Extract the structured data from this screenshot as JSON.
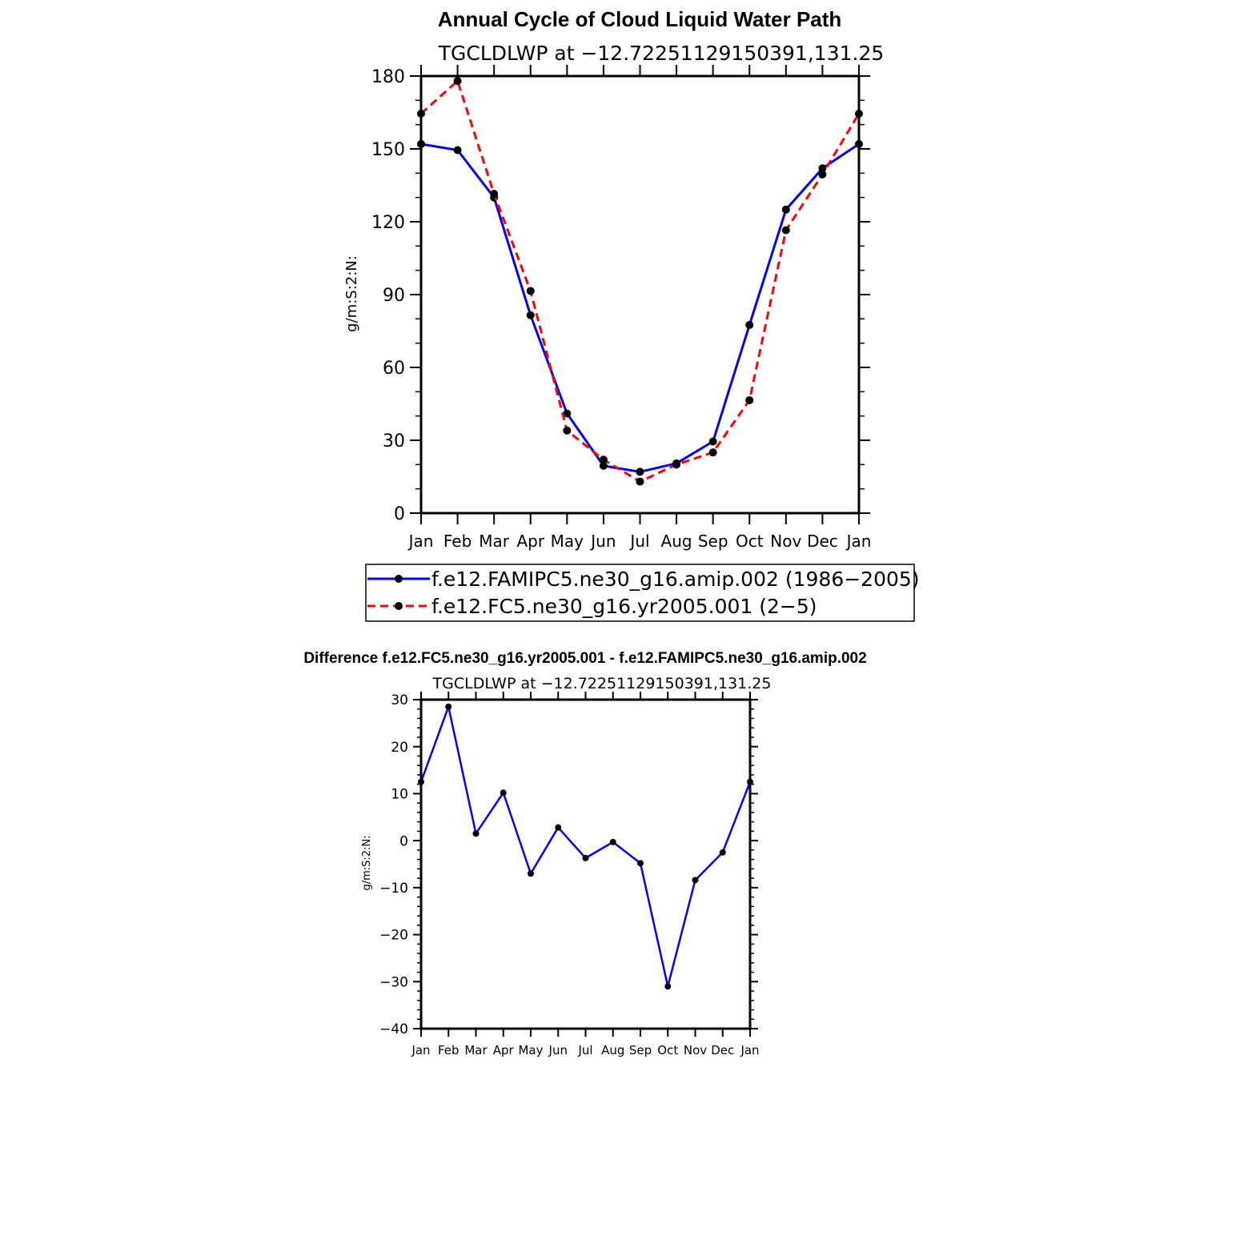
{
  "chart_data": [
    {
      "type": "line",
      "title": "Annual Cycle of Cloud Liquid Water Path",
      "subtitle": "TGCLDLWP at −12.72251129150391,131.25",
      "ylabel": "g/m:S:2:N:",
      "xlabel": "",
      "categories": [
        "Jan",
        "Feb",
        "Mar",
        "Apr",
        "May",
        "Jun",
        "Jul",
        "Aug",
        "Sep",
        "Oct",
        "Nov",
        "Dec",
        "Jan"
      ],
      "ylim": [
        0,
        180
      ],
      "yticks": [
        "0",
        "30",
        "60",
        "90",
        "120",
        "150",
        "180"
      ],
      "legend_position": "bottom",
      "series": [
        {
          "name": "f.e12.FAMIPC5.ne30_g16.amip.002 (1986−2005)",
          "color": "#0000ff",
          "dash": "solid",
          "values": [
            152,
            149.5,
            130,
            81.5,
            41,
            19.5,
            17,
            20.5,
            29.5,
            77.5,
            125,
            142,
            152
          ]
        },
        {
          "name": "f.e12.FC5.ne30_g16.yr2005.001 (2−5)",
          "color": "#ff0000",
          "dash": "dashed",
          "values": [
            164.5,
            178,
            131.5,
            91.5,
            34,
            22,
            13,
            20,
            25,
            46.5,
            116.5,
            139.5,
            164.5
          ]
        }
      ]
    },
    {
      "type": "line",
      "title": "Difference f.e12.FC5.ne30_g16.yr2005.001 - f.e12.FAMIPC5.ne30_g16.amip.002",
      "subtitle": "TGCLDLWP at −12.72251129150391,131.25",
      "ylabel": "g/m:S:2:N:",
      "xlabel": "",
      "categories": [
        "Jan",
        "Feb",
        "Mar",
        "Apr",
        "May",
        "Jun",
        "Jul",
        "Aug",
        "Sep",
        "Oct",
        "Nov",
        "Dec",
        "Jan"
      ],
      "ylim": [
        -40,
        30
      ],
      "yticks": [
        "−40",
        "−30",
        "−20",
        "−10",
        "0",
        "10",
        "20",
        "30"
      ],
      "series": [
        {
          "color": "#0000ff",
          "dash": "solid",
          "values": [
            12.5,
            28.5,
            1.5,
            10.2,
            -7,
            2.8,
            -3.7,
            -0.3,
            -4.8,
            -31,
            -8.4,
            -2.5,
            12.5
          ]
        }
      ]
    }
  ]
}
